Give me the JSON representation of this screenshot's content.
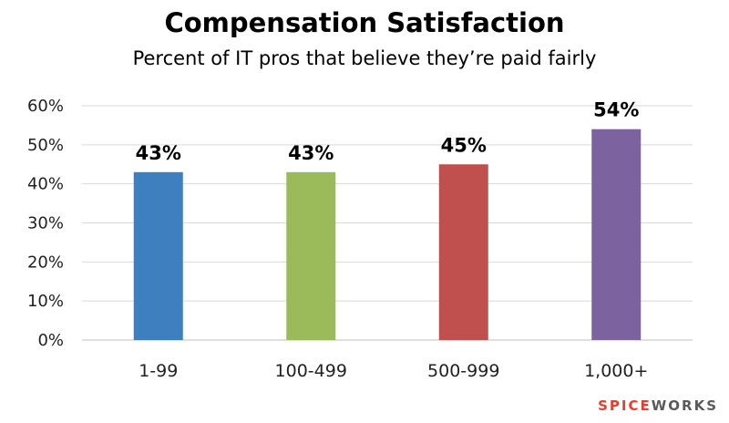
{
  "chart_data": {
    "type": "bar",
    "title": "Compensation Satisfaction",
    "subtitle": "Percent of IT pros that believe they’re paid fairly",
    "categories": [
      "1-99",
      "100-499",
      "500-999",
      "1,000+"
    ],
    "values": [
      43,
      43,
      45,
      54
    ],
    "data_labels": [
      "43%",
      "43%",
      "45%",
      "54%"
    ],
    "colors": [
      "#3e7fbf",
      "#9bbb5a",
      "#c0504d",
      "#7d62a0"
    ],
    "ylim": [
      0,
      60
    ],
    "yticks": [
      0,
      10,
      20,
      30,
      40,
      50,
      60
    ],
    "ytick_labels": [
      "0%",
      "10%",
      "20%",
      "30%",
      "40%",
      "50%",
      "60%"
    ],
    "grid": true,
    "xlabel": "",
    "ylabel": ""
  },
  "logo": {
    "spice": "SPICE",
    "works": "WORKS"
  }
}
